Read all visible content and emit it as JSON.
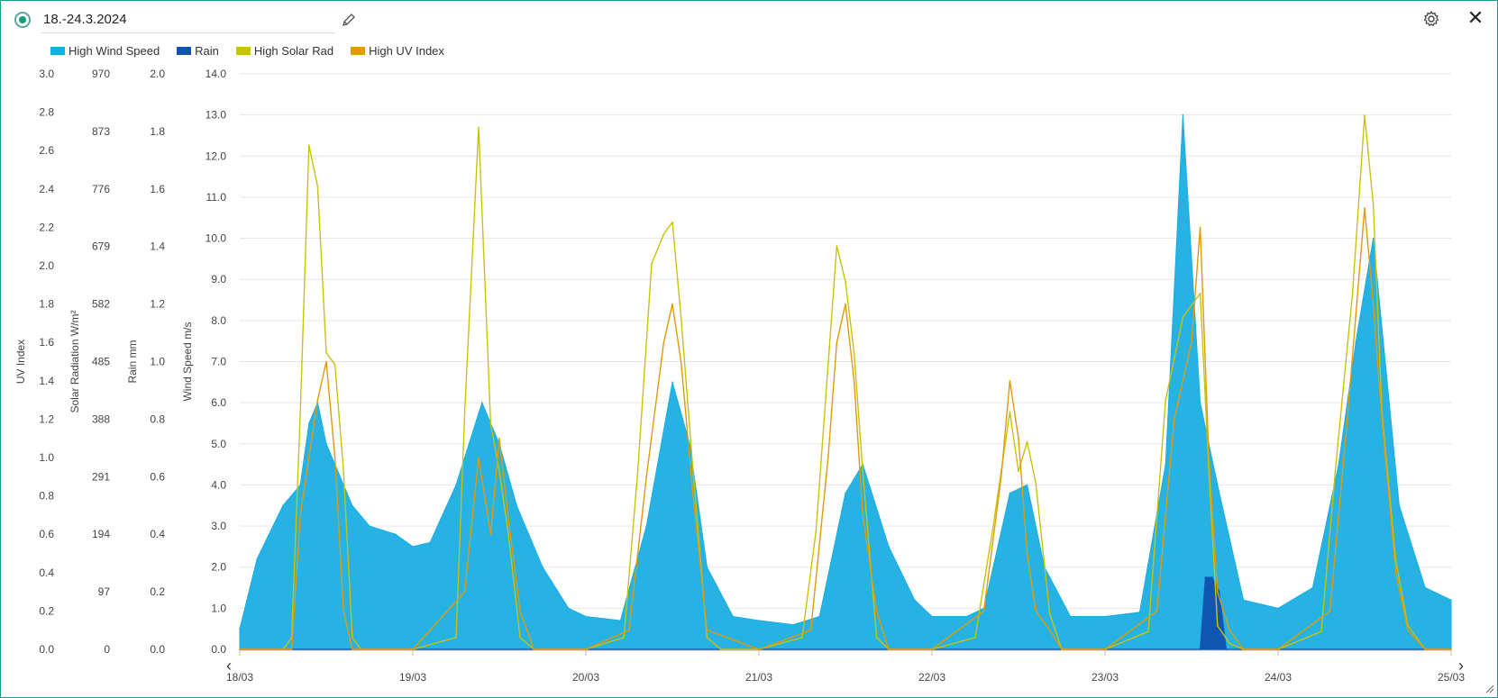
{
  "header": {
    "title": "18.-24.3.2024"
  },
  "colors": {
    "wind": "#1aaee0",
    "rain": "#0f56b3",
    "solar": "#c6c40a",
    "uv": "#e09a0a",
    "accent": "#129e7e"
  },
  "icons": [
    "radio-selected-icon",
    "pencil-icon",
    "gear-icon",
    "close-icon",
    "chevron-left-icon",
    "chevron-right-icon",
    "resize-icon"
  ],
  "chart_data": {
    "type": "line",
    "legend_position": "top-left",
    "grid": true,
    "x_labels": [
      "18/03",
      "19/03",
      "20/03",
      "21/03",
      "22/03",
      "23/03",
      "24/03",
      "25/03"
    ],
    "x_range_days": [
      0,
      7
    ],
    "axes": [
      {
        "label": "UV Index",
        "ticks": [
          "0.0",
          "0.2",
          "0.4",
          "0.6",
          "0.8",
          "1.0",
          "1.2",
          "1.4",
          "1.6",
          "1.8",
          "2.0",
          "2.2",
          "2.4",
          "2.6",
          "2.8",
          "3.0"
        ],
        "range": [
          0,
          3.0
        ]
      },
      {
        "label": "Solar Radiation W/m²",
        "ticks": [
          "0",
          "97",
          "194",
          "291",
          "388",
          "485",
          "582",
          "679",
          "776",
          "873",
          "970"
        ],
        "range": [
          0,
          970
        ]
      },
      {
        "label": "Rain mm",
        "ticks": [
          "0.0",
          "0.2",
          "0.4",
          "0.6",
          "0.8",
          "1.0",
          "1.2",
          "1.4",
          "1.6",
          "1.8",
          "2.0"
        ],
        "range": [
          0,
          2.0
        ]
      },
      {
        "label": "Wind Speed m/s",
        "ticks": [
          "0.0",
          "1.0",
          "2.0",
          "3.0",
          "4.0",
          "5.0",
          "6.0",
          "7.0",
          "8.0",
          "9.0",
          "10.0",
          "11.0",
          "12.0",
          "13.0",
          "14.0"
        ],
        "range": [
          0,
          14.0
        ]
      }
    ],
    "series": [
      {
        "name": "High Wind Speed",
        "color": "#1aaee0",
        "axis": "Wind Speed m/s",
        "x": [
          0.0,
          0.1,
          0.25,
          0.35,
          0.4,
          0.45,
          0.5,
          0.55,
          0.6,
          0.65,
          0.75,
          0.9,
          1.0,
          1.1,
          1.25,
          1.4,
          1.5,
          1.6,
          1.75,
          1.9,
          2.0,
          2.2,
          2.35,
          2.5,
          2.6,
          2.7,
          2.85,
          3.0,
          3.2,
          3.35,
          3.5,
          3.6,
          3.75,
          3.9,
          4.0,
          4.2,
          4.3,
          4.45,
          4.55,
          4.65,
          4.8,
          5.0,
          5.2,
          5.35,
          5.45,
          5.55,
          5.65,
          5.8,
          6.0,
          6.2,
          6.35,
          6.45,
          6.55,
          6.7,
          6.85,
          7.0
        ],
        "y": [
          0.5,
          2.2,
          3.5,
          4.0,
          5.5,
          6.0,
          5.0,
          4.5,
          4.0,
          3.5,
          3.0,
          2.8,
          2.5,
          2.6,
          4.0,
          6.0,
          5.0,
          3.5,
          2.0,
          1.0,
          0.8,
          0.7,
          3.0,
          6.5,
          5.0,
          2.0,
          0.8,
          0.7,
          0.6,
          0.8,
          3.8,
          4.5,
          2.5,
          1.2,
          0.8,
          0.8,
          1.0,
          3.8,
          4.0,
          2.0,
          0.8,
          0.8,
          0.9,
          4.5,
          13.0,
          6.0,
          4.0,
          1.2,
          1.0,
          1.5,
          4.5,
          7.5,
          10.0,
          3.5,
          1.5,
          1.2
        ]
      },
      {
        "name": "Rain",
        "color": "#0f56b3",
        "axis": "Rain mm",
        "x": [
          0.0,
          5.55,
          5.58,
          5.62,
          5.66,
          5.7,
          6.0,
          7.0
        ],
        "y": [
          0.0,
          0.0,
          0.25,
          0.25,
          0.2,
          0.0,
          0.0,
          0.0
        ]
      },
      {
        "name": "High Solar Rad",
        "color": "#c6c40a",
        "axis": "Solar Radiation W/m²",
        "x": [
          0.0,
          0.25,
          0.3,
          0.35,
          0.4,
          0.45,
          0.5,
          0.55,
          0.6,
          0.65,
          0.7,
          1.0,
          1.25,
          1.3,
          1.38,
          1.45,
          1.5,
          1.55,
          1.62,
          1.7,
          2.0,
          2.22,
          2.3,
          2.38,
          2.45,
          2.5,
          2.55,
          2.62,
          2.7,
          2.78,
          3.0,
          3.25,
          3.33,
          3.4,
          3.45,
          3.5,
          3.55,
          3.6,
          3.68,
          3.75,
          4.0,
          4.25,
          4.35,
          4.45,
          4.5,
          4.55,
          4.6,
          4.68,
          4.75,
          5.0,
          5.25,
          5.35,
          5.45,
          5.55,
          5.6,
          5.65,
          5.72,
          5.8,
          6.0,
          6.25,
          6.33,
          6.43,
          6.5,
          6.55,
          6.6,
          6.68,
          6.75,
          6.85,
          7.0
        ],
        "y": [
          0,
          0,
          20,
          400,
          850,
          780,
          500,
          480,
          300,
          20,
          0,
          0,
          20,
          400,
          880,
          380,
          300,
          200,
          20,
          0,
          0,
          20,
          300,
          650,
          700,
          720,
          560,
          300,
          20,
          0,
          0,
          20,
          200,
          480,
          680,
          620,
          500,
          300,
          20,
          0,
          0,
          20,
          200,
          400,
          300,
          350,
          280,
          60,
          0,
          0,
          30,
          420,
          560,
          600,
          300,
          40,
          10,
          0,
          0,
          30,
          300,
          600,
          900,
          750,
          400,
          150,
          40,
          0,
          0
        ]
      },
      {
        "name": "High UV Index",
        "color": "#e09a0a",
        "axis": "UV Index",
        "x": [
          0.0,
          0.3,
          0.35,
          0.4,
          0.45,
          0.5,
          0.55,
          0.6,
          0.65,
          0.7,
          1.0,
          1.3,
          1.38,
          1.45,
          1.5,
          1.55,
          1.62,
          1.7,
          2.0,
          2.25,
          2.35,
          2.45,
          2.5,
          2.55,
          2.62,
          2.7,
          3.0,
          3.3,
          3.4,
          3.45,
          3.5,
          3.55,
          3.6,
          3.68,
          3.75,
          4.0,
          4.3,
          4.4,
          4.45,
          4.5,
          4.55,
          4.6,
          4.68,
          4.75,
          5.0,
          5.3,
          5.4,
          5.5,
          5.55,
          5.6,
          5.65,
          5.72,
          5.8,
          6.0,
          6.3,
          6.4,
          6.5,
          6.55,
          6.6,
          6.68,
          6.75,
          6.85,
          7.0
        ],
        "y": [
          0,
          0,
          0.7,
          1.0,
          1.3,
          1.5,
          1.0,
          0.2,
          0.0,
          0,
          0,
          0.3,
          1.0,
          0.6,
          1.1,
          0.7,
          0.2,
          0,
          0,
          0.1,
          0.9,
          1.6,
          1.8,
          1.5,
          0.8,
          0.1,
          0,
          0.1,
          1.0,
          1.6,
          1.8,
          1.4,
          0.7,
          0.2,
          0,
          0,
          0.2,
          0.9,
          1.4,
          1.1,
          0.5,
          0.2,
          0.1,
          0,
          0,
          0.2,
          1.2,
          1.6,
          2.2,
          1.0,
          0.3,
          0.1,
          0,
          0,
          0.2,
          1.2,
          2.3,
          1.8,
          1.2,
          0.4,
          0.1,
          0,
          0
        ]
      }
    ]
  }
}
